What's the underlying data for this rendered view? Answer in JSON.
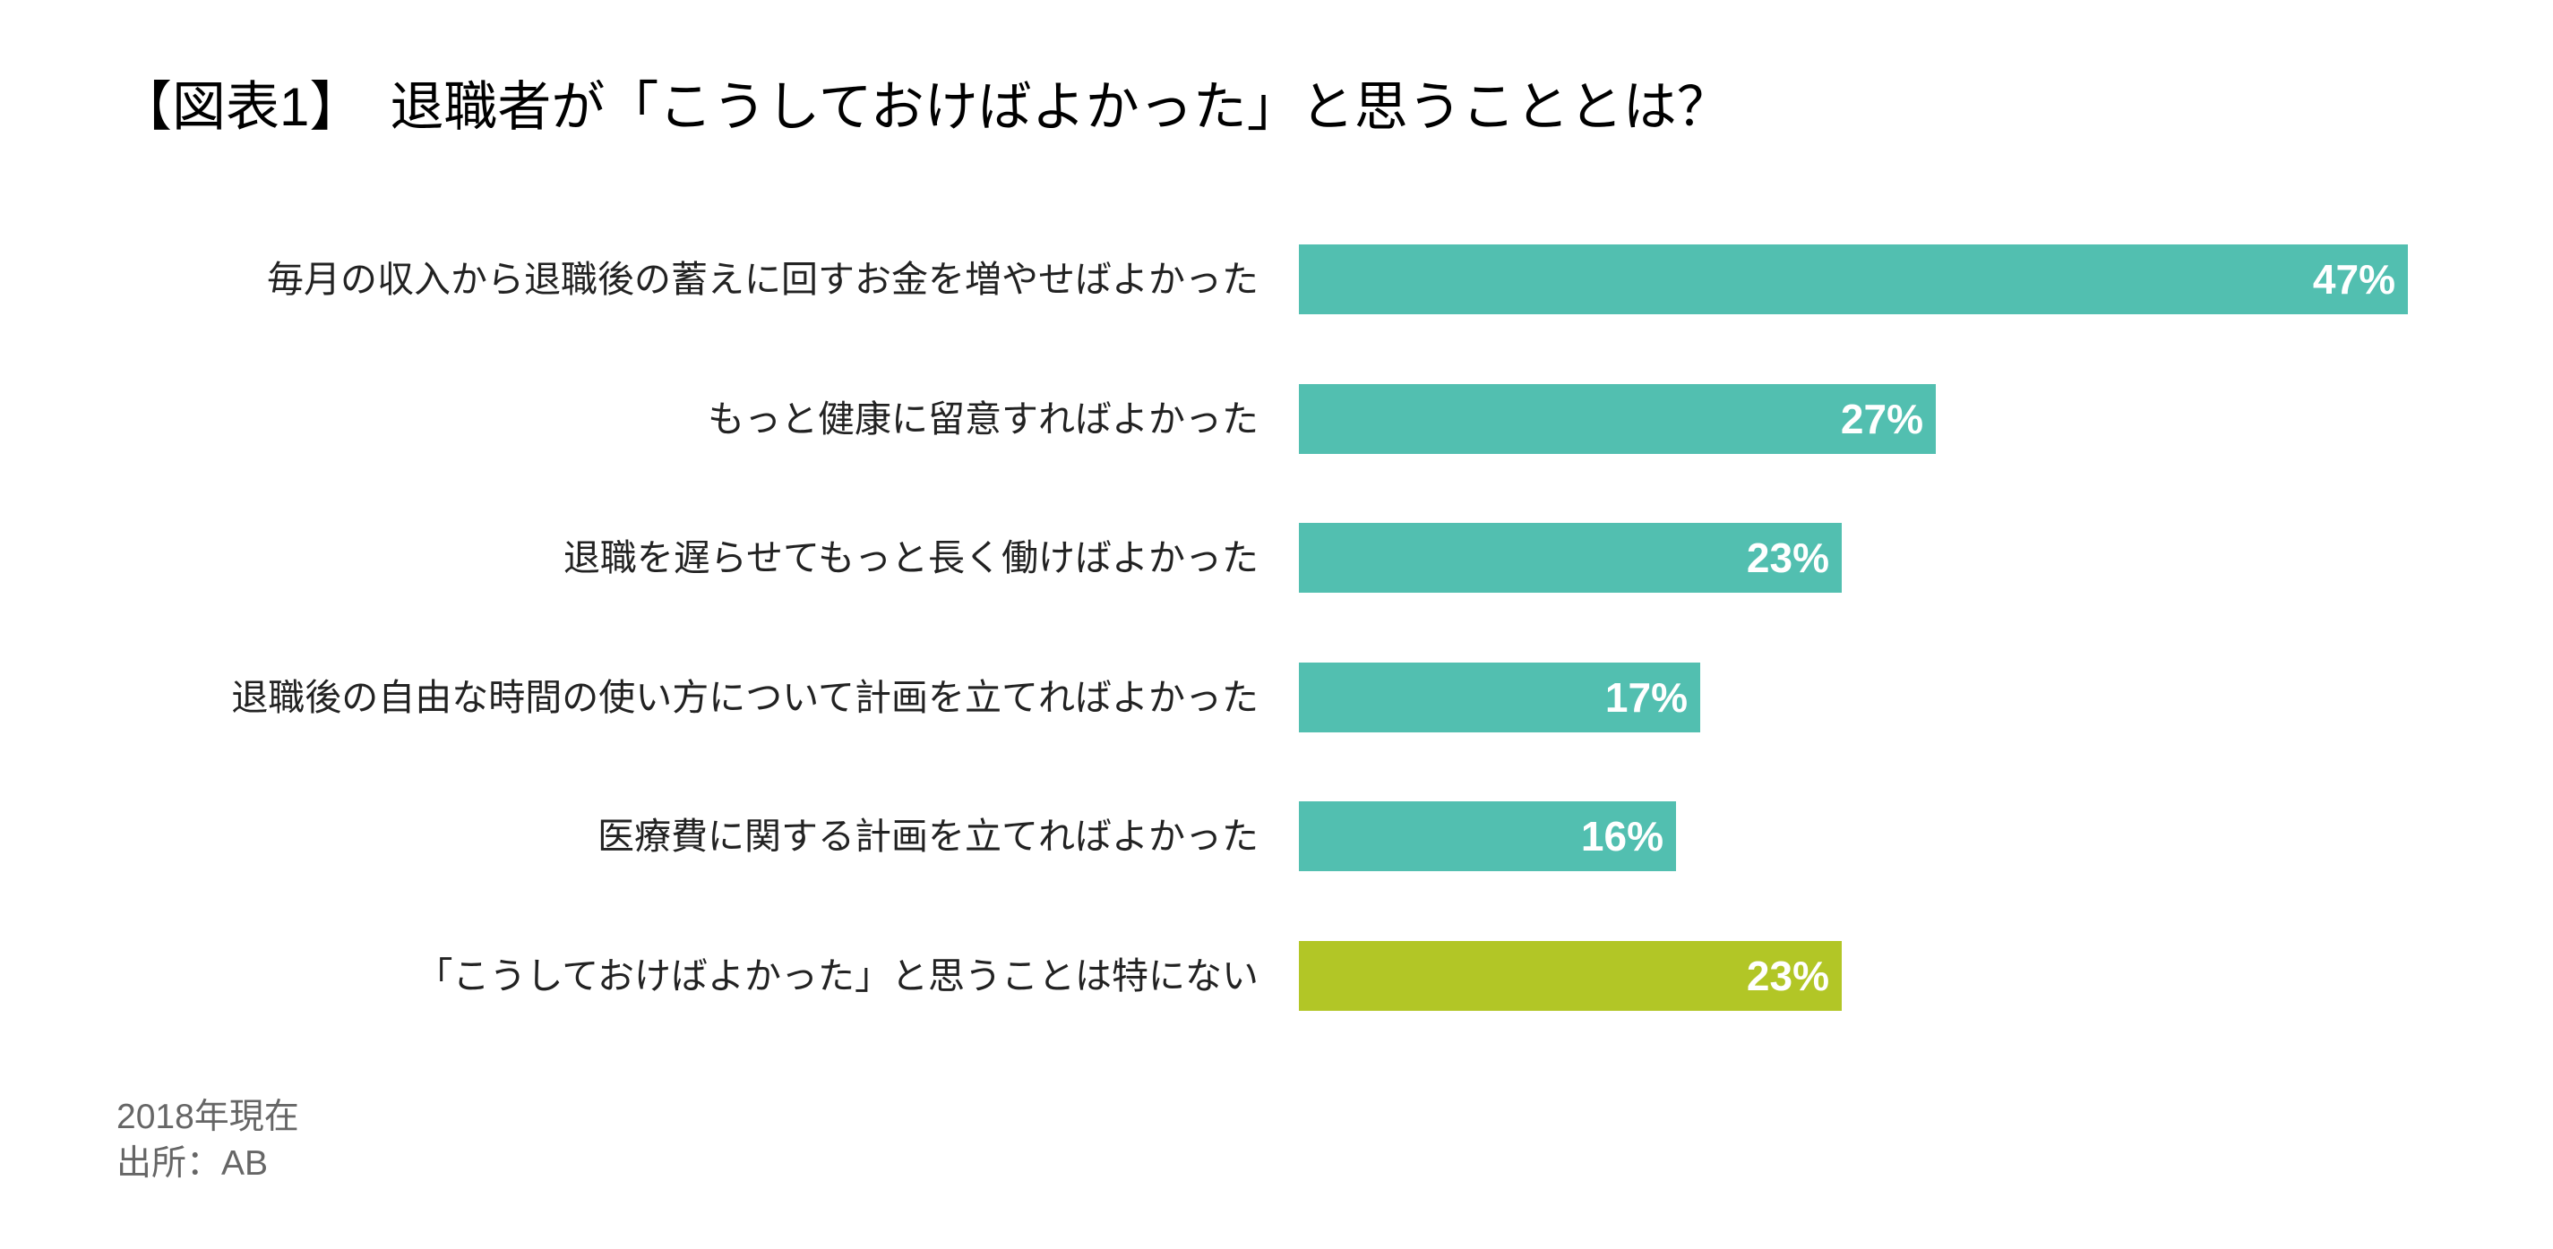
{
  "title": "【図表1】　退職者が「こうしておけばよかった」と思うこととは？",
  "colors": {
    "primary_bar": "#52BFB0",
    "highlight_bar": "#B2C626",
    "label_text": "#222222",
    "value_text": "#FFFFFF",
    "footnote_text": "#666666"
  },
  "footnote": {
    "line1": "2018年現在",
    "line2": "出所：AB"
  },
  "chart_data": {
    "type": "bar",
    "orientation": "horizontal",
    "title": "【図表1】　退職者が「こうしておけばよかった」と思うこととは？",
    "xlabel": "",
    "ylabel": "",
    "unit": "%",
    "xlim": [
      0,
      50
    ],
    "grid": false,
    "legend": null,
    "categories": [
      "毎月の収入から退職後の蓄えに回すお金を増やせばよかった",
      "もっと健康に留意すればよかった",
      "退職を遅らせてもっと長く働けばよかった",
      "退職後の自由な時間の使い方について計画を立てればよかった",
      "医療費に関する計画を立てればよかった",
      "「こうしておけばよかった」と思うことは特にない"
    ],
    "values": [
      47,
      27,
      23,
      17,
      16,
      23
    ],
    "value_labels": [
      "47%",
      "27%",
      "23%",
      "17%",
      "16%",
      "23%"
    ],
    "bar_colors": [
      "#52BFB0",
      "#52BFB0",
      "#52BFB0",
      "#52BFB0",
      "#52BFB0",
      "#B2C626"
    ],
    "annotations": [
      "2018年現在",
      "出所：AB"
    ]
  },
  "rows": [
    {
      "label": "毎月の収入から退職後の蓄えに回すお金を増やせばよかった",
      "value": 47,
      "value_label": "47%",
      "color": "#52BFB0"
    },
    {
      "label": "もっと健康に留意すればよかった",
      "value": 27,
      "value_label": "27%",
      "color": "#52BFB0"
    },
    {
      "label": "退職を遅らせてもっと長く働けばよかった",
      "value": 23,
      "value_label": "23%",
      "color": "#52BFB0"
    },
    {
      "label": "退職後の自由な時間の使い方について計画を立てればよかった",
      "value": 17,
      "value_label": "17%",
      "color": "#52BFB0"
    },
    {
      "label": "医療費に関する計画を立てればよかった",
      "value": 16,
      "value_label": "16%",
      "color": "#52BFB0"
    },
    {
      "label": "「こうしておけばよかった」と思うことは特にない",
      "value": 23,
      "value_label": "23%",
      "color": "#B2C626"
    }
  ]
}
